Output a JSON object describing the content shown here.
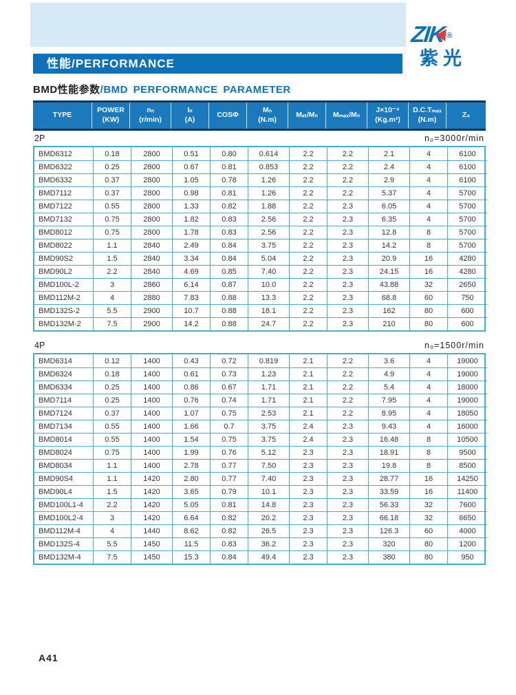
{
  "brand": {
    "logo_text": "ZIK",
    "registered_mark": "®",
    "logo_cn": "紫光"
  },
  "banner": {
    "title": "性能/PERFORMANCE"
  },
  "page_title": {
    "cn": "BMD性能参数",
    "en": "/BMD PERFORMANCE PARAMETER"
  },
  "table": {
    "headers": [
      "TYPE",
      "POWER\n(KW)",
      "nₙ\n(r/min)",
      "Iₙ\n(A)",
      "COSΦ",
      "Mₙ\n(N.m)",
      "Mₛₜ/Mₙ",
      "Mₘₐₓ/Mₙ",
      "J×10⁻⁴\n(Kg.m²)",
      "D.C.Tₘₐₓ\n(N.m)",
      "Z₀"
    ],
    "sections": [
      {
        "label": "2P",
        "speed_note": "n₀=3000r/min",
        "rows": [
          [
            "BMD6312",
            "0.18",
            "2800",
            "0.51",
            "0.80",
            "0.614",
            "2.2",
            "2.2",
            "2.1",
            "4",
            "6100"
          ],
          [
            "BMD6322",
            "0.25",
            "2800",
            "0.67",
            "0.81",
            "0.853",
            "2.2",
            "2.2",
            "2.4",
            "4",
            "6100"
          ],
          [
            "BMD6332",
            "0.37",
            "2800",
            "1.05",
            "0.78",
            "1.26",
            "2.2",
            "2.2",
            "2.9",
            "4",
            "6100"
          ],
          [
            "BMD7112",
            "0.37",
            "2800",
            "0.98",
            "0.81",
            "1.26",
            "2.2",
            "2.2",
            "5.37",
            "4",
            "5700"
          ],
          [
            "BMD7122",
            "0.55",
            "2800",
            "1.33",
            "0.82",
            "1.88",
            "2.2",
            "2.3",
            "6.05",
            "4",
            "5700"
          ],
          [
            "BMD7132",
            "0.75",
            "2800",
            "1.82",
            "0.83",
            "2.56",
            "2.2",
            "2.3",
            "6.35",
            "4",
            "5700"
          ],
          [
            "BMD8012",
            "0.75",
            "2800",
            "1.78",
            "0.83",
            "2.56",
            "2.2",
            "2.3",
            "12.8",
            "8",
            "5700"
          ],
          [
            "BMD8022",
            "1.1",
            "2840",
            "2.49",
            "0.84",
            "3.75",
            "2.2",
            "2.3",
            "14.2",
            "8",
            "5700"
          ],
          [
            "BMD90S2",
            "1.5",
            "2840",
            "3.34",
            "0.84",
            "5.04",
            "2.2",
            "2.3",
            "20.9",
            "16",
            "4280"
          ],
          [
            "BMD90L2",
            "2.2",
            "2840",
            "4.69",
            "0.85",
            "7.40",
            "2.2",
            "2.3",
            "24.15",
            "16",
            "4280"
          ],
          [
            "BMD100L-2",
            "3",
            "2860",
            "6.14",
            "0.87",
            "10.0",
            "2.2",
            "2.3",
            "43.88",
            "32",
            "2650"
          ],
          [
            "BMD112M-2",
            "4",
            "2880",
            "7.83",
            "0.88",
            "13.3",
            "2.2",
            "2.3",
            "68.8",
            "60",
            "750"
          ],
          [
            "BMD132S-2",
            "5.5",
            "2900",
            "10.7",
            "0.88",
            "18.1",
            "2.2",
            "2.3",
            "162",
            "80",
            "600"
          ],
          [
            "BMD132M-2",
            "7.5",
            "2900",
            "14.2",
            "0.88",
            "24.7",
            "2.2",
            "2.3",
            "210",
            "80",
            "600"
          ]
        ]
      },
      {
        "label": "4P",
        "speed_note": "n₀=1500r/min",
        "rows": [
          [
            "BMD6314",
            "0.12",
            "1400",
            "0.43",
            "0.72",
            "0.819",
            "2.1",
            "2.2",
            "3.6",
            "4",
            "19000"
          ],
          [
            "BMD6324",
            "0.18",
            "1400",
            "0.61",
            "0.73",
            "1.23",
            "2.1",
            "2.2",
            "4.9",
            "4",
            "19000"
          ],
          [
            "BMD6334",
            "0.25",
            "1400",
            "0.86",
            "0.67",
            "1.71",
            "2.1",
            "2.2",
            "5.4",
            "4",
            "18000"
          ],
          [
            "BMD7114",
            "0.25",
            "1400",
            "0.76",
            "0.74",
            "1.71",
            "2.1",
            "2.2",
            "7.95",
            "4",
            "19000"
          ],
          [
            "BMD7124",
            "0.37",
            "1400",
            "1.07",
            "0.75",
            "2.53",
            "2.1",
            "2.2",
            "8.95",
            "4",
            "18050"
          ],
          [
            "BMD7134",
            "0.55",
            "1400",
            "1.66",
            "0.7",
            "3.75",
            "2.4",
            "2.3",
            "9.43",
            "4",
            "16000"
          ],
          [
            "BMD8014",
            "0.55",
            "1400",
            "1.54",
            "0.75",
            "3.75",
            "2.4",
            "2.3",
            "16.48",
            "8",
            "10500"
          ],
          [
            "BMD8024",
            "0.75",
            "1400",
            "1.99",
            "0.76",
            "5.12",
            "2.3",
            "2.3",
            "18.91",
            "8",
            "9500"
          ],
          [
            "BMD8034",
            "1.1",
            "1400",
            "2.78",
            "0.77",
            "7.50",
            "2.3",
            "2.3",
            "19.8",
            "8",
            "8500"
          ],
          [
            "BMD90S4",
            "1.1",
            "1420",
            "2.80",
            "0.77",
            "7.40",
            "2.3",
            "2.3",
            "28.77",
            "16",
            "14250"
          ],
          [
            "BMD90L4",
            "1.5",
            "1420",
            "3.65",
            "0.79",
            "10.1",
            "2.3",
            "2.3",
            "33.59",
            "16",
            "11400"
          ],
          [
            "BMD100L1-4",
            "2.2",
            "1420",
            "5.05",
            "0.81",
            "14.8",
            "2.3",
            "2.3",
            "56.33",
            "32",
            "7600"
          ],
          [
            "BMD100L2-4",
            "3",
            "1420",
            "6.64",
            "0.82",
            "20.2",
            "2.3",
            "2.3",
            "66.18",
            "32",
            "6650"
          ],
          [
            "BMD112M-4",
            "4",
            "1440",
            "8.62",
            "0.82",
            "26.5",
            "2.3",
            "2.3",
            "126.3",
            "60",
            "4000"
          ],
          [
            "BMD132S-4",
            "5.5",
            "1450",
            "11.5",
            "0.83",
            "36.2",
            "2.3",
            "2.3",
            "320",
            "80",
            "1200"
          ],
          [
            "BMD132M-4",
            "7.5",
            "1450",
            "15.3",
            "0.84",
            "49.4",
            "2.3",
            "2.3",
            "380",
            "80",
            "950"
          ]
        ]
      }
    ]
  },
  "footer": {
    "page_number": "A41"
  },
  "colors": {
    "brand_blue": "#0d72b8",
    "header_blue": "#1b7abe",
    "navy": "#14355f",
    "grid_cyan": "#41aecd",
    "light_blue": "#d6e9f7",
    "logo_red": "#e8382f",
    "text_dark": "#333333"
  }
}
